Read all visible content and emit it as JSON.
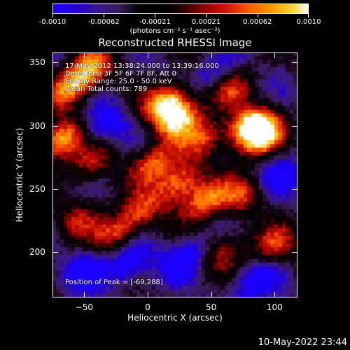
{
  "chart_data": {
    "type": "heatmap",
    "title": "Reconstructed RHESSI Image",
    "xlabel": "Heliocentric X (arcsec)",
    "ylabel": "Heliocentric Y (arcsec)",
    "xlim": [
      -75,
      118
    ],
    "ylim": [
      164,
      358
    ],
    "xticks": [
      -50,
      0,
      50,
      100
    ],
    "yticks": [
      200,
      250,
      300,
      350
    ],
    "colorbar": {
      "ticks": [
        "-0.0010",
        "-0.00062",
        "-0.00021",
        "0.00021",
        "0.00062",
        "0.0010"
      ],
      "range": [
        -0.001,
        0.001
      ],
      "unit_label": "(photons cm⁻² s⁻¹ asec⁻²)"
    },
    "annotations": {
      "time": "17-May-2012 13:38:24.000 to 13:39:16.000",
      "detectors": "Detectors: 3F 5F 6F 7F 8F, Att 0",
      "energy": "Energy Range: 25.0 - 50.0 keV",
      "clean": "Clean    Total counts: 789",
      "peak": "Position of Peak = [-69,288]"
    },
    "peak_position": [
      -69,
      288
    ],
    "bright_ridges": [
      {
        "x": -69,
        "y": 288,
        "intensity": 0.95
      },
      {
        "x": -60,
        "y": 330,
        "intensity": 0.75
      },
      {
        "x": -45,
        "y": 345,
        "intensity": 0.7
      },
      {
        "x": 15,
        "y": 318,
        "intensity": 0.95
      },
      {
        "x": 25,
        "y": 305,
        "intensity": 0.85
      },
      {
        "x": 80,
        "y": 300,
        "intensity": 0.95
      },
      {
        "x": 90,
        "y": 290,
        "intensity": 0.85
      },
      {
        "x": 45,
        "y": 290,
        "intensity": 0.55
      },
      {
        "x": 5,
        "y": 270,
        "intensity": 0.7
      },
      {
        "x": 25,
        "y": 255,
        "intensity": 0.8
      },
      {
        "x": 45,
        "y": 240,
        "intensity": 0.75
      },
      {
        "x": 75,
        "y": 245,
        "intensity": 0.55
      },
      {
        "x": -45,
        "y": 270,
        "intensity": 0.5
      },
      {
        "x": -25,
        "y": 215,
        "intensity": 0.6
      },
      {
        "x": -5,
        "y": 232,
        "intensity": 0.55
      },
      {
        "x": 100,
        "y": 205,
        "intensity": 0.6
      },
      {
        "x": 65,
        "y": 330,
        "intensity": 0.55
      },
      {
        "x": -55,
        "y": 225,
        "intensity": 0.45
      },
      {
        "x": 60,
        "y": 200,
        "intensity": 0.45
      }
    ],
    "dark_regions": [
      {
        "x": -15,
        "y": 190,
        "intensity": -0.6
      },
      {
        "x": 30,
        "y": 195,
        "intensity": -0.55
      },
      {
        "x": 85,
        "y": 175,
        "intensity": -0.5
      },
      {
        "x": -35,
        "y": 300,
        "intensity": -0.5
      },
      {
        "x": 105,
        "y": 260,
        "intensity": -0.45
      },
      {
        "x": 55,
        "y": 340,
        "intensity": -0.4
      },
      {
        "x": -50,
        "y": 185,
        "intensity": -0.45
      }
    ]
  },
  "footer": {
    "timestamp": "10-May-2022 23:44"
  }
}
